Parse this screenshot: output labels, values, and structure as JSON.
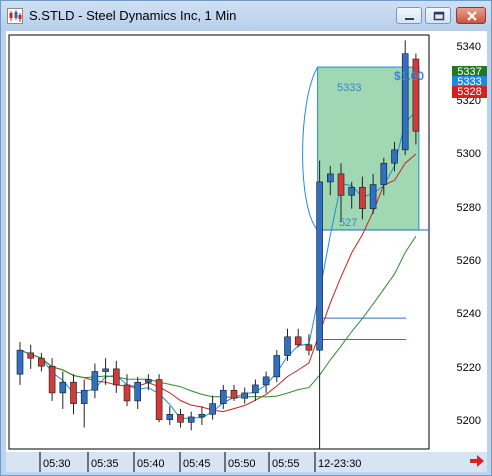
{
  "window": {
    "title": "S.STLD - Steel Dynamics Inc, 1 Min",
    "icon": "candlestick-chart-icon",
    "controls": [
      "minimize-icon",
      "restore-icon",
      "close-icon"
    ]
  },
  "chart_data": {
    "type": "candlestick",
    "symbol": "S.STLD",
    "ylim": [
      5190,
      5345
    ],
    "y_ticks": [
      "5340",
      "5320",
      "5300",
      "5280",
      "5260",
      "5240",
      "5220",
      "5200"
    ],
    "x_ticks": [
      "05:30",
      "05:35",
      "05:40",
      "05:45",
      "05:50",
      "05:55",
      "12-23:30"
    ],
    "price_badges": [
      {
        "value": "5337",
        "color": "#1f7a1f"
      },
      {
        "value": "5333",
        "color": "#1e88e5"
      },
      {
        "value": "5328",
        "color": "#d62020"
      }
    ],
    "annotations": {
      "box_top": "5333",
      "box_bottom": "527",
      "right_label": "$1.60"
    },
    "colors": {
      "up": "#2f6fc4",
      "down": "#d13b3b",
      "ma_fast": "#1e8fd8",
      "ma_mid": "#cc2222",
      "ma_slow": "#2e8b2e",
      "box": "#8ed1a5"
    },
    "candles": [
      {
        "o": 5218,
        "h": 5230,
        "l": 5214,
        "c": 5227
      },
      {
        "o": 5226,
        "h": 5229,
        "l": 5220,
        "c": 5224
      },
      {
        "o": 5224,
        "h": 5226,
        "l": 5219,
        "c": 5221
      },
      {
        "o": 5221,
        "h": 5224,
        "l": 5208,
        "c": 5211
      },
      {
        "o": 5211,
        "h": 5219,
        "l": 5205,
        "c": 5215
      },
      {
        "o": 5215,
        "h": 5218,
        "l": 5203,
        "c": 5207
      },
      {
        "o": 5207,
        "h": 5216,
        "l": 5198,
        "c": 5212
      },
      {
        "o": 5212,
        "h": 5222,
        "l": 5209,
        "c": 5219
      },
      {
        "o": 5219,
        "h": 5224,
        "l": 5214,
        "c": 5220
      },
      {
        "o": 5220,
        "h": 5223,
        "l": 5211,
        "c": 5214
      },
      {
        "o": 5214,
        "h": 5218,
        "l": 5206,
        "c": 5208
      },
      {
        "o": 5208,
        "h": 5217,
        "l": 5205,
        "c": 5215
      },
      {
        "o": 5215,
        "h": 5218,
        "l": 5212,
        "c": 5216
      },
      {
        "o": 5216,
        "h": 5218,
        "l": 5200,
        "c": 5201
      },
      {
        "o": 5201,
        "h": 5206,
        "l": 5199,
        "c": 5203
      },
      {
        "o": 5203,
        "h": 5205,
        "l": 5198,
        "c": 5200
      },
      {
        "o": 5200,
        "h": 5204,
        "l": 5197,
        "c": 5202
      },
      {
        "o": 5202,
        "h": 5206,
        "l": 5199,
        "c": 5203
      },
      {
        "o": 5203,
        "h": 5210,
        "l": 5201,
        "c": 5207
      },
      {
        "o": 5207,
        "h": 5214,
        "l": 5205,
        "c": 5212
      },
      {
        "o": 5212,
        "h": 5214,
        "l": 5208,
        "c": 5209
      },
      {
        "o": 5209,
        "h": 5213,
        "l": 5207,
        "c": 5211
      },
      {
        "o": 5211,
        "h": 5216,
        "l": 5208,
        "c": 5214
      },
      {
        "o": 5214,
        "h": 5219,
        "l": 5211,
        "c": 5217
      },
      {
        "o": 5217,
        "h": 5227,
        "l": 5215,
        "c": 5225
      },
      {
        "o": 5225,
        "h": 5235,
        "l": 5223,
        "c": 5232
      },
      {
        "o": 5232,
        "h": 5235,
        "l": 5228,
        "c": 5229
      },
      {
        "o": 5229,
        "h": 5233,
        "l": 5225,
        "c": 5227
      },
      {
        "o": 5227,
        "h": 5298,
        "l": 5190,
        "c": 5290
      },
      {
        "o": 5290,
        "h": 5296,
        "l": 5285,
        "c": 5293
      },
      {
        "o": 5293,
        "h": 5297,
        "l": 5275,
        "c": 5285
      },
      {
        "o": 5285,
        "h": 5290,
        "l": 5280,
        "c": 5288
      },
      {
        "o": 5288,
        "h": 5292,
        "l": 5276,
        "c": 5280
      },
      {
        "o": 5280,
        "h": 5293,
        "l": 5278,
        "c": 5289
      },
      {
        "o": 5289,
        "h": 5299,
        "l": 5285,
        "c": 5297
      },
      {
        "o": 5297,
        "h": 5305,
        "l": 5294,
        "c": 5302
      },
      {
        "o": 5302,
        "h": 5343,
        "l": 5300,
        "c": 5338
      },
      {
        "o": 5336,
        "h": 5338,
        "l": 5304,
        "c": 5309
      }
    ]
  }
}
